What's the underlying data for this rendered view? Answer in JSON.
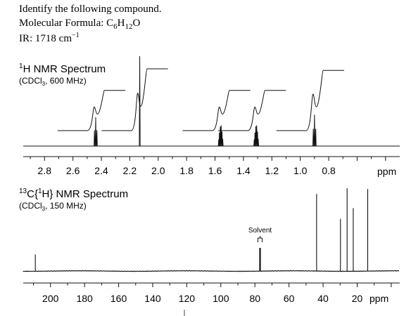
{
  "problem": {
    "prompt": "Identify the following compound.",
    "formula_label": "Molecular Formula: ",
    "formula_parts": [
      {
        "t": "C",
        "sub": false
      },
      {
        "t": "6",
        "sub": true
      },
      {
        "t": "H",
        "sub": false
      },
      {
        "t": "12",
        "sub": true
      },
      {
        "t": "O",
        "sub": false
      }
    ],
    "ir_label": "IR:  1718 cm",
    "ir_sup": "−1"
  },
  "chart_data": [
    {
      "type": "line",
      "title_sup": "1",
      "title": "H NMR Spectrum",
      "subtitle_parts": [
        {
          "t": "(CDCl",
          "sub": false
        },
        {
          "t": "3",
          "sub": true
        },
        {
          "t": ", 600 MHz)",
          "sub": false
        }
      ],
      "xlabel": "ppm",
      "x_reversed": true,
      "xlim": [
        2.95,
        0.3
      ],
      "major_ticks": [
        "2.8",
        "2.6",
        "2.4",
        "2.2",
        "2.0",
        "1.8",
        "1.6",
        "1.4",
        "1.2",
        "1.0",
        "0.8"
      ],
      "minor_tick_step": 0.1,
      "peaks": [
        {
          "shift": 2.44,
          "multiplicity": "t",
          "relative_height": 0.32
        },
        {
          "shift": 2.13,
          "multiplicity": "s",
          "relative_height": 1.0
        },
        {
          "shift": 1.56,
          "multiplicity": "m",
          "relative_height": 0.23
        },
        {
          "shift": 1.31,
          "multiplicity": "m",
          "relative_height": 0.23
        },
        {
          "shift": 0.9,
          "multiplicity": "t",
          "relative_height": 0.35
        }
      ],
      "integrals": [
        {
          "from": 2.5,
          "to": 2.38,
          "start": 0.0,
          "end": 0.52
        },
        {
          "from": 2.19,
          "to": 2.08,
          "start": 0.0,
          "end": 0.8
        },
        {
          "from": 1.62,
          "to": 1.5,
          "start": 0.0,
          "end": 0.52
        },
        {
          "from": 1.37,
          "to": 1.25,
          "start": 0.0,
          "end": 0.52
        },
        {
          "from": 0.96,
          "to": 0.84,
          "start": 0.0,
          "end": 0.78
        }
      ]
    },
    {
      "type": "line",
      "title_sup": "13",
      "title_main": "C{",
      "title_inner_sup": "1",
      "title_tail": "H} NMR Spectrum",
      "subtitle_parts": [
        {
          "t": "(CDCl",
          "sub": false
        },
        {
          "t": "3",
          "sub": true
        },
        {
          "t": ", 150 MHz)",
          "sub": false
        }
      ],
      "xlabel": "ppm",
      "x_reversed": true,
      "xlim": [
        216,
        -5
      ],
      "major_ticks": [
        "200",
        "180",
        "160",
        "140",
        "120",
        "100",
        "80",
        "60",
        "40",
        "20"
      ],
      "minor_tick_step": 10,
      "annotation": "Solvent",
      "solvent_shift": 77,
      "peaks": [
        {
          "shift": 208.9,
          "relative_height": 0.2
        },
        {
          "shift": 77.0,
          "relative_height": 0.28
        },
        {
          "shift": 43.8,
          "relative_height": 0.93
        },
        {
          "shift": 29.8,
          "relative_height": 0.63
        },
        {
          "shift": 25.9,
          "relative_height": 1.0
        },
        {
          "shift": 22.3,
          "relative_height": 0.76
        },
        {
          "shift": 13.8,
          "relative_height": 0.99
        }
      ]
    }
  ]
}
